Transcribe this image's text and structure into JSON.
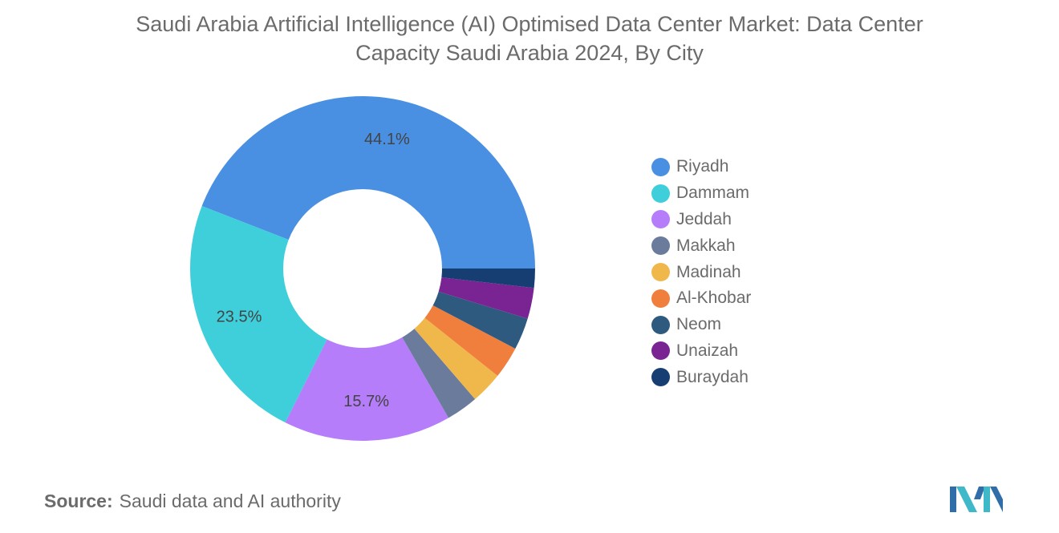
{
  "title": "Saudi Arabia Artificial Intelligence (AI) Optimised Data Center Market: Data Center Capacity Saudi Arabia 2024, By City",
  "source": {
    "label": "Source:",
    "text": "Saudi data and AI authority"
  },
  "chart_data": {
    "type": "pie",
    "title": "Saudi Arabia Artificial Intelligence (AI) Optimised Data Center Market: Data Center Capacity Saudi Arabia 2024, By City",
    "donut": true,
    "legend_position": "right",
    "slices": [
      {
        "label": "Riyadh",
        "value": 44.1,
        "color": "#4a90e2",
        "data_label": "44.1%"
      },
      {
        "label": "Dammam",
        "value": 23.5,
        "color": "#3fcfdb",
        "data_label": "23.5%"
      },
      {
        "label": "Jeddah",
        "value": 15.7,
        "color": "#b57dfa",
        "data_label": "15.7%"
      },
      {
        "label": "Makkah",
        "value": 3.0,
        "color": "#6b7b9c",
        "data_label": ""
      },
      {
        "label": "Madinah",
        "value": 3.0,
        "color": "#f0b84a",
        "data_label": ""
      },
      {
        "label": "Al-Khobar",
        "value": 3.0,
        "color": "#f07f3e",
        "data_label": ""
      },
      {
        "label": "Neom",
        "value": 3.0,
        "color": "#2e5a80",
        "data_label": ""
      },
      {
        "label": "Unaizah",
        "value": 2.9,
        "color": "#7a2494",
        "data_label": ""
      },
      {
        "label": "Buraydah",
        "value": 1.8,
        "color": "#173e72",
        "data_label": ""
      }
    ]
  }
}
